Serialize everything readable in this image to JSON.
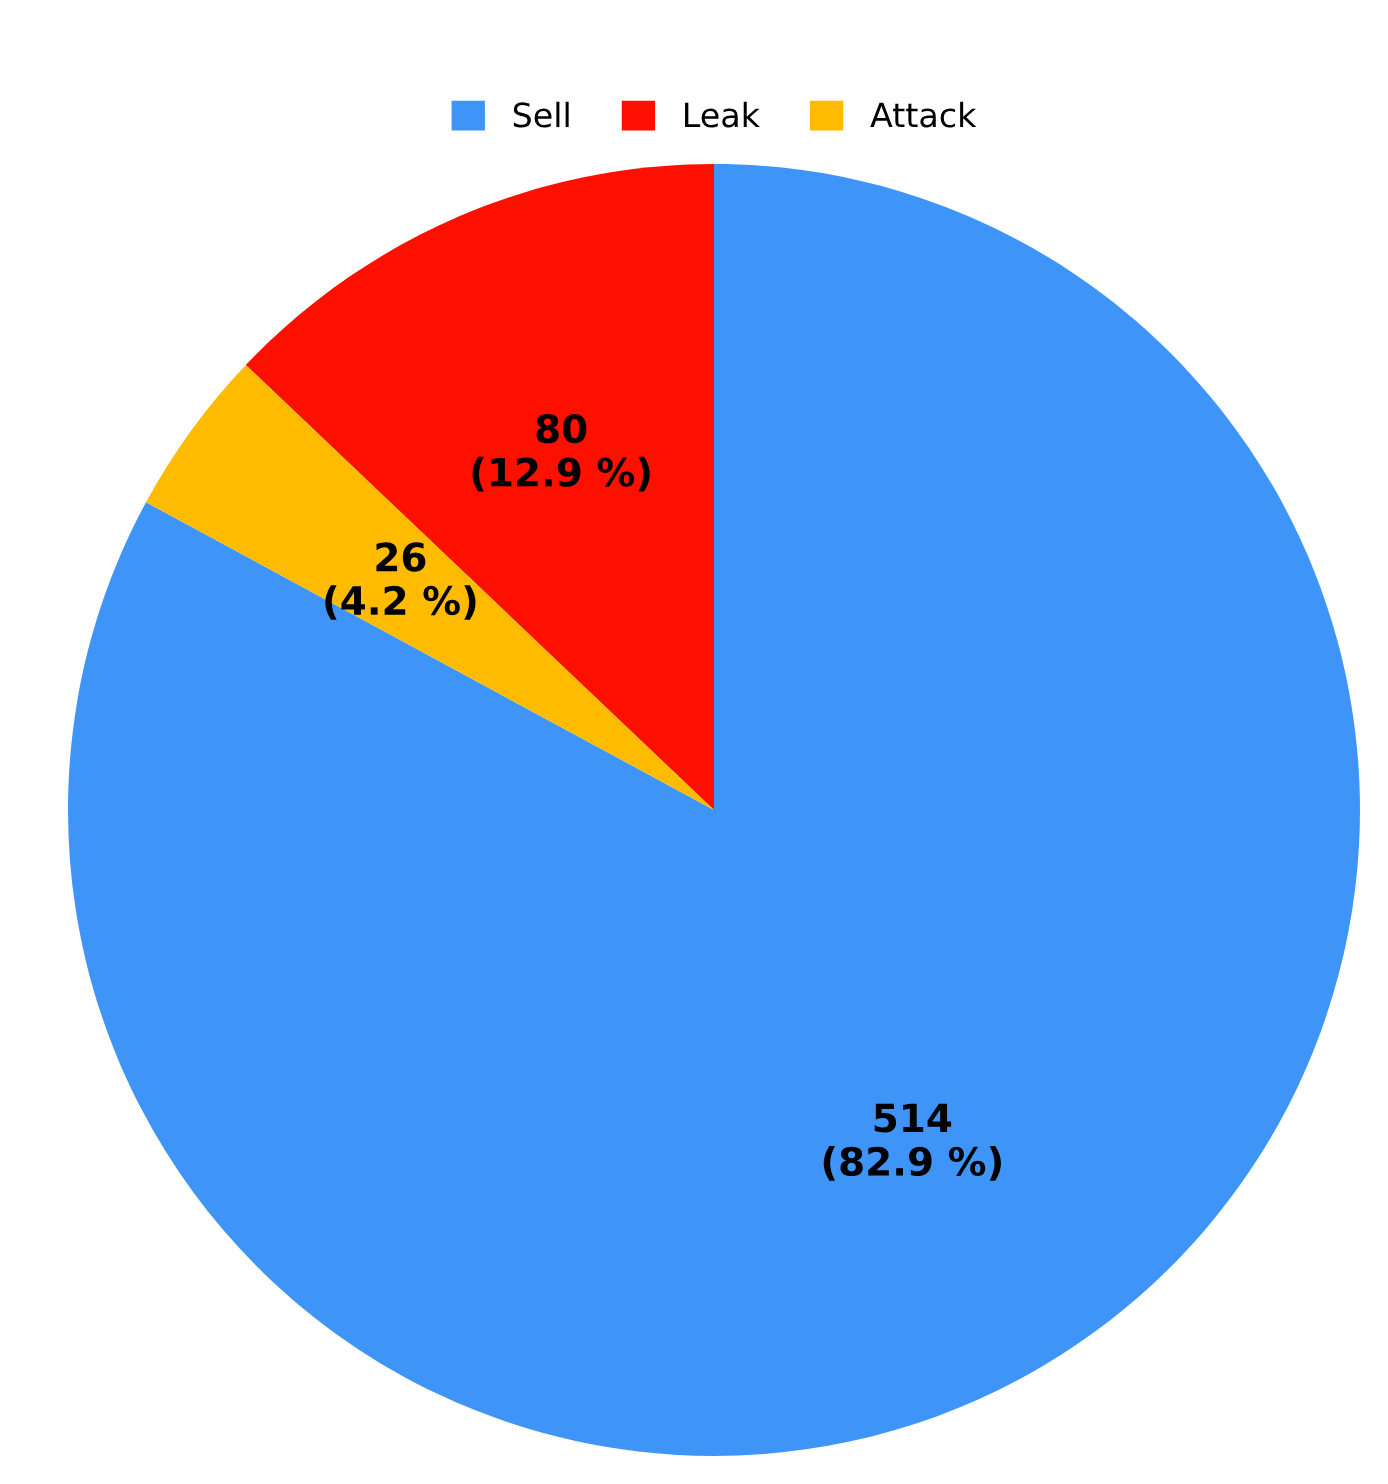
{
  "chart_data": {
    "type": "pie",
    "categories": [
      "Sell",
      "Leak",
      "Attack"
    ],
    "values": [
      514,
      80,
      26
    ],
    "colors": [
      "#3f95f7",
      "#fe1000",
      "#ffbb00"
    ],
    "value_labels": [
      "514\n(82.9 %)",
      "80\n(12.9 %)",
      "26\n(4.2 %)"
    ],
    "legend": "top"
  }
}
